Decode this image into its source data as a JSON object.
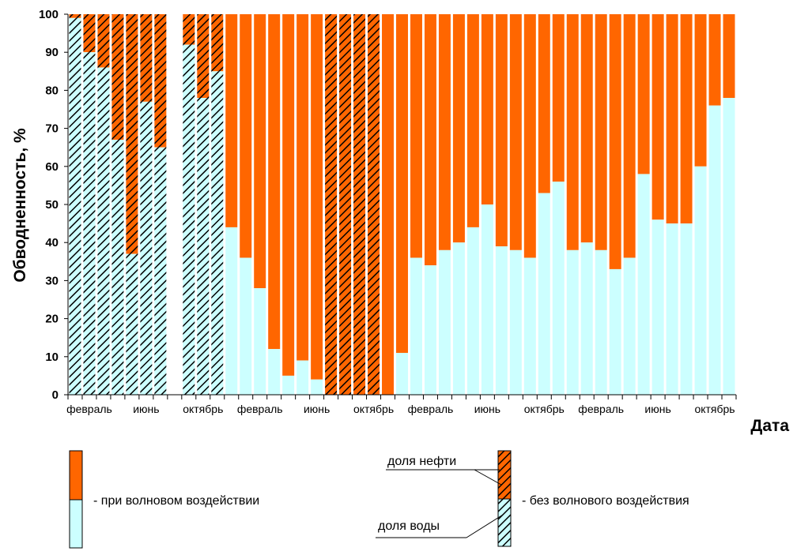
{
  "chart_data": {
    "type": "bar",
    "stacked": true,
    "ylabel": "Обводненность, %",
    "xlabel": "Дата",
    "ylim": [
      0,
      100
    ],
    "y_ticks": [
      0,
      10,
      20,
      30,
      40,
      50,
      60,
      70,
      80,
      90,
      100
    ],
    "grid": false,
    "month_labels": [
      {
        "bar": 1,
        "text": "февраль"
      },
      {
        "bar": 5,
        "text": "июнь"
      },
      {
        "bar": 9,
        "text": "октябрь"
      },
      {
        "bar": 13,
        "text": "февраль"
      },
      {
        "bar": 17,
        "text": "июнь"
      },
      {
        "bar": 21,
        "text": "октябрь"
      },
      {
        "bar": 25,
        "text": "февраль"
      },
      {
        "bar": 29,
        "text": "июнь"
      },
      {
        "bar": 33,
        "text": "октябрь"
      },
      {
        "bar": 37,
        "text": "февраль"
      },
      {
        "bar": 41,
        "text": "июнь"
      },
      {
        "bar": 45,
        "text": "октябрь"
      }
    ],
    "bars": [
      {
        "water": 99,
        "mode": "without"
      },
      {
        "water": 90,
        "mode": "without"
      },
      {
        "water": 86,
        "mode": "without"
      },
      {
        "water": 67,
        "mode": "without"
      },
      {
        "water": 37,
        "mode": "without"
      },
      {
        "water": 77,
        "mode": "without"
      },
      {
        "water": 65,
        "mode": "without"
      },
      {
        "water": null,
        "mode": "empty"
      },
      {
        "water": 92,
        "mode": "without"
      },
      {
        "water": 78,
        "mode": "without"
      },
      {
        "water": 85,
        "mode": "without"
      },
      {
        "water": 44,
        "mode": "with"
      },
      {
        "water": 36,
        "mode": "with"
      },
      {
        "water": 28,
        "mode": "with"
      },
      {
        "water": 12,
        "mode": "with"
      },
      {
        "water": 5,
        "mode": "with"
      },
      {
        "water": 9,
        "mode": "with"
      },
      {
        "water": 4,
        "mode": "with"
      },
      {
        "water": 0,
        "mode": "without"
      },
      {
        "water": 0,
        "mode": "without"
      },
      {
        "water": 0,
        "mode": "without"
      },
      {
        "water": 0,
        "mode": "without"
      },
      {
        "water": 0,
        "mode": "with"
      },
      {
        "water": 11,
        "mode": "with"
      },
      {
        "water": 36,
        "mode": "with"
      },
      {
        "water": 34,
        "mode": "with"
      },
      {
        "water": 38,
        "mode": "with"
      },
      {
        "water": 40,
        "mode": "with"
      },
      {
        "water": 44,
        "mode": "with"
      },
      {
        "water": 50,
        "mode": "with"
      },
      {
        "water": 39,
        "mode": "with"
      },
      {
        "water": 38,
        "mode": "with"
      },
      {
        "water": 36,
        "mode": "with"
      },
      {
        "water": 53,
        "mode": "with"
      },
      {
        "water": 56,
        "mode": "with"
      },
      {
        "water": 38,
        "mode": "with"
      },
      {
        "water": 40,
        "mode": "with"
      },
      {
        "water": 38,
        "mode": "with"
      },
      {
        "water": 33,
        "mode": "with"
      },
      {
        "water": 36,
        "mode": "with"
      },
      {
        "water": 58,
        "mode": "with"
      },
      {
        "water": 46,
        "mode": "with"
      },
      {
        "water": 45,
        "mode": "with"
      },
      {
        "water": 45,
        "mode": "with"
      },
      {
        "water": 60,
        "mode": "with"
      },
      {
        "water": 76,
        "mode": "with"
      },
      {
        "water": 78,
        "mode": "with"
      }
    ],
    "colors": {
      "oil": "#ff6600",
      "water": "#ccffff",
      "hatch": "#000000",
      "outline": "#000000"
    }
  },
  "legend": {
    "with_wave": "- при волновом воздействии",
    "without_wave": "- без волнового воздействия",
    "oil_share": "доля нефти",
    "water_share": "доля воды"
  }
}
